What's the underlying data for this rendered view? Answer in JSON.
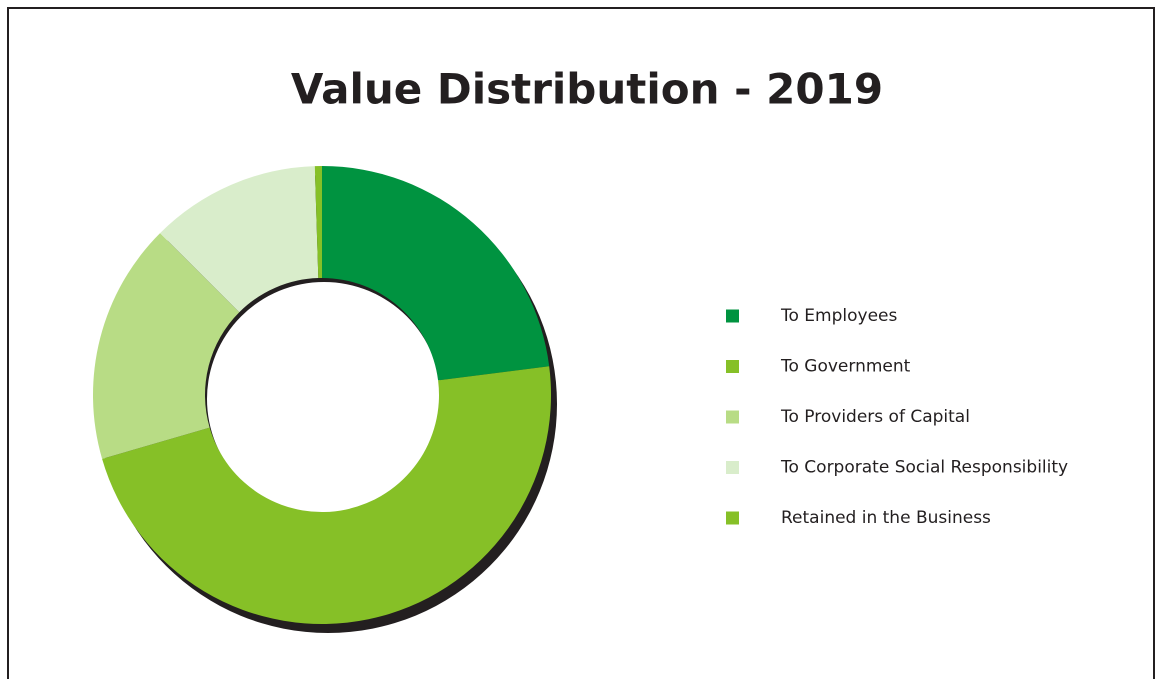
{
  "chart_data": {
    "type": "donut",
    "title": "Value Distribution - 2019",
    "categories": [
      "To Employees",
      "To Government",
      "To Providers of Capital",
      "To Corporate Social Responsibility",
      "Retained in the Business"
    ],
    "values": [
      23,
      47.5,
      17,
      12,
      0.5
    ],
    "colors": [
      "#009340",
      "#86c027",
      "#b8dc85",
      "#d9edcb",
      "#86c027"
    ],
    "legend": "right"
  }
}
